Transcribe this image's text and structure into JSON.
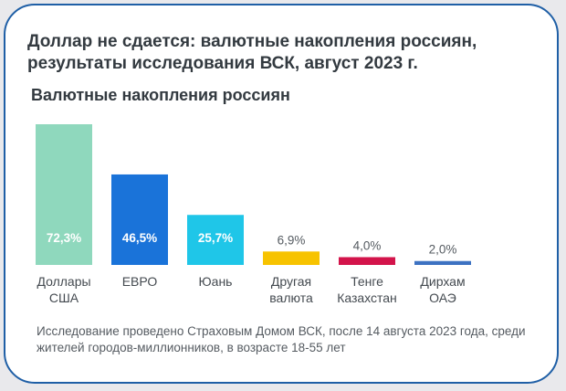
{
  "header": {
    "title": "Доллар не сдается: валютные накопления россиян, результаты исследования ВСК, август 2023 г.",
    "subtitle": "Валютные накопления россиян"
  },
  "footnote": "Исследование проведено Страховым Домом ВСК, после 14 августа 2023 года, среди жителей городов-миллионников, в возрасте 18-55 лет",
  "colors": {
    "card_border": "#1f5fa6",
    "text": "#333a40"
  },
  "chart_data": {
    "type": "bar",
    "title": "Валютные накопления россиян",
    "xlabel": "",
    "ylabel": "",
    "ylim": [
      0,
      72.3
    ],
    "grid": false,
    "categories": [
      [
        "Доллары",
        "США"
      ],
      [
        "ЕВРО"
      ],
      [
        "Юань"
      ],
      [
        "Другая",
        "валюта"
      ],
      [
        "Тенге",
        "Казахстан"
      ],
      [
        "Дирхам",
        "ОАЭ"
      ]
    ],
    "values": [
      72.3,
      46.5,
      25.7,
      6.9,
      4.0,
      2.0
    ],
    "value_labels": [
      "72,3%",
      "46,5%",
      "25,7%",
      "6,9%",
      "4,0%",
      "2,0%"
    ],
    "bar_colors": [
      "#8fd8bd",
      "#1a73d9",
      "#1fc6e8",
      "#f7c300",
      "#d3144b",
      "#3d72c2"
    ]
  }
}
